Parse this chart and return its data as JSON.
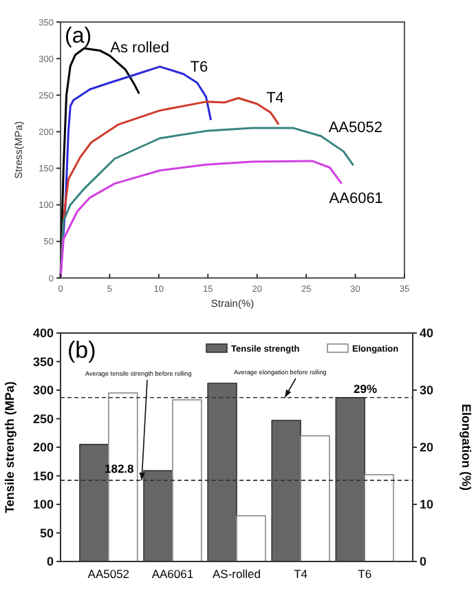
{
  "chart_data": [
    {
      "type": "line",
      "xlabel": "Strain(%)",
      "ylabel": "Stress(MPa)",
      "xlim": [
        0,
        35
      ],
      "ylim": [
        0,
        350
      ],
      "xticks": [
        0,
        5,
        10,
        15,
        20,
        25,
        30,
        35
      ],
      "yticks": [
        0,
        50,
        100,
        150,
        200,
        250,
        300,
        350
      ],
      "annotations": [
        "(a)"
      ],
      "series": [
        {
          "name": "As rolled",
          "color": "#000000",
          "x": [
            0,
            0.3,
            0.6,
            1,
            1.5,
            2.4,
            4,
            5,
            6.6,
            7.5,
            8
          ],
          "values": [
            0,
            150,
            250,
            290,
            305,
            314,
            311,
            304,
            285,
            265,
            252
          ]
        },
        {
          "name": "T6",
          "color": "#2b2bd9",
          "x": [
            0,
            0.5,
            0.8,
            1,
            1.3,
            3,
            5,
            7.8,
            10.1,
            12.5,
            13.9,
            14.8,
            15.3
          ],
          "values": [
            0,
            100,
            200,
            235,
            243,
            258,
            267,
            279,
            289,
            279,
            267,
            248,
            216
          ]
        },
        {
          "name": "T4",
          "color": "#d03a2a",
          "x": [
            0,
            0.3,
            0.8,
            2,
            3.1,
            5.9,
            10.1,
            14.8,
            16.7,
            18.1,
            20,
            21.4,
            22.2
          ],
          "values": [
            0,
            80,
            135,
            165,
            185,
            210,
            229,
            241,
            240,
            246,
            238,
            226,
            210
          ]
        },
        {
          "name": "AA5052",
          "color": "#3a8580",
          "x": [
            0,
            0.3,
            1,
            2.4,
            5.5,
            10.1,
            14.8,
            19.5,
            23.7,
            26.5,
            28.8,
            29.8
          ],
          "values": [
            0,
            78,
            100,
            122,
            163,
            191,
            201,
            205,
            205,
            194,
            173,
            154
          ]
        },
        {
          "name": "AA6061",
          "color": "#d040e0",
          "x": [
            0,
            0.3,
            1.7,
            3,
            5.5,
            10.1,
            14.8,
            19.5,
            25.6,
            27.4,
            28.6
          ],
          "values": [
            0,
            53,
            91,
            110,
            129,
            147,
            155,
            159,
            160,
            151,
            129
          ]
        }
      ]
    },
    {
      "type": "bar",
      "ylabel": "Tensile strength (MPa)",
      "y2label": "Elongation (%)",
      "categories": [
        "AA5052",
        "AA6061",
        "AS-rolled",
        "T4",
        "T6"
      ],
      "ylim": [
        0,
        400
      ],
      "yticks": [
        0,
        50,
        100,
        150,
        200,
        250,
        300,
        350,
        400
      ],
      "y2lim": [
        0,
        40
      ],
      "y2ticks": [
        0,
        10,
        20,
        30,
        40
      ],
      "legend": "top right",
      "series": [
        {
          "name": "Tensile strength",
          "color": "#666666",
          "values": [
            205,
            159,
            312,
            247,
            287
          ]
        },
        {
          "name": "Elongation",
          "color": "#ffffff",
          "axis": "y2",
          "values": [
            29.5,
            28.3,
            8,
            22,
            15.2
          ]
        }
      ],
      "ref_lines": [
        {
          "axis": "y",
          "value": 142,
          "line_style": "dashed"
        },
        {
          "axis": "y2",
          "value": 28.7,
          "line_style": "dashed"
        }
      ],
      "annotations": [
        "(b)",
        {
          "text": "Average tensile strength before rolling",
          "y": 142
        },
        {
          "text": "Average elongation before rolling",
          "y": 287
        },
        "182.8",
        "29%"
      ]
    }
  ]
}
